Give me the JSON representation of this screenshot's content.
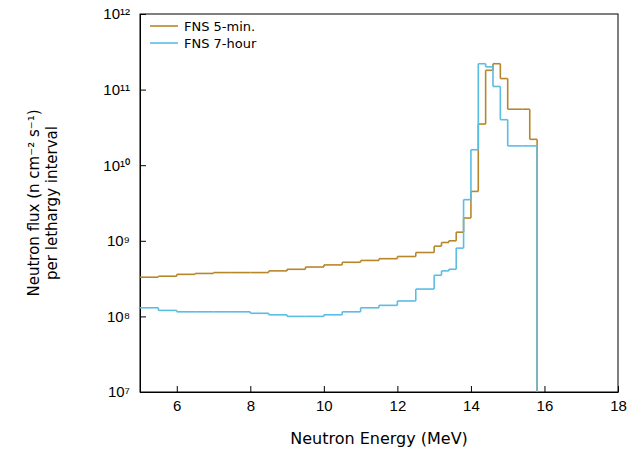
{
  "chart_data": {
    "type": "step",
    "xlabel": "Neutron Energy (MeV)",
    "ylabel": [
      "Neutron flux (n cm⁻² s⁻¹)",
      "per lethargy interval"
    ],
    "bins": [
      5,
      5.5,
      6,
      6.5,
      7,
      7.5,
      8,
      8.5,
      9,
      9.5,
      10,
      10.5,
      11,
      11.5,
      12,
      12.5,
      13,
      13.2,
      13.4,
      13.6,
      13.8,
      14.0,
      14.2,
      14.4,
      14.6,
      14.8,
      15.0,
      15.2,
      15.4,
      15.6,
      15.8
    ],
    "series": [
      {
        "name": "FNS 5-min.",
        "color": "#b8862a",
        "values": [
          330000000.0,
          340000000.0,
          360000000.0,
          370000000.0,
          380000000.0,
          380000000.0,
          380000000.0,
          400000000.0,
          420000000.0,
          450000000.0,
          480000000.0,
          520000000.0,
          550000000.0,
          580000000.0,
          620000000.0,
          700000000.0,
          850000000.0,
          950000000.0,
          1000000000.0,
          1300000000.0,
          2000000000.0,
          4500000000.0,
          35000000000.0,
          180000000000.0,
          220000000000.0,
          140000000000.0,
          55000000000.0,
          55000000000.0,
          55000000000.0,
          22000000000.0
        ]
      },
      {
        "name": "FNS 7-hour",
        "color": "#5bbce4",
        "values": [
          130000000.0,
          120000000.0,
          115000000.0,
          115000000.0,
          115000000.0,
          115000000.0,
          110000000.0,
          105000000.0,
          100000000.0,
          100000000.0,
          105000000.0,
          115000000.0,
          130000000.0,
          140000000.0,
          160000000.0,
          230000000.0,
          350000000.0,
          400000000.0,
          420000000.0,
          800000000.0,
          3500000000.0,
          16000000000.0,
          220000000000.0,
          200000000000.0,
          110000000000.0,
          40000000000.0,
          18000000000.0,
          18000000000.0,
          18000000000.0,
          18000000000.0
        ]
      }
    ],
    "xlim": [
      5,
      18
    ],
    "xticks": [
      6,
      8,
      10,
      12,
      14,
      16,
      18
    ],
    "ylim": [
      10000000.0,
      1000000000000.0
    ],
    "yticks": [
      {
        "value": 10000000.0,
        "label": "10⁷"
      },
      {
        "value": 100000000.0,
        "label": "10⁸"
      },
      {
        "value": 1000000000.0,
        "label": "10⁹"
      },
      {
        "value": 10000000000.0,
        "label": "10¹⁰"
      },
      {
        "value": 100000000000.0,
        "label": "10¹¹"
      },
      {
        "value": 1000000000000.0,
        "label": "10¹²"
      }
    ],
    "log": "y",
    "grid": false,
    "legend": "upper left"
  }
}
